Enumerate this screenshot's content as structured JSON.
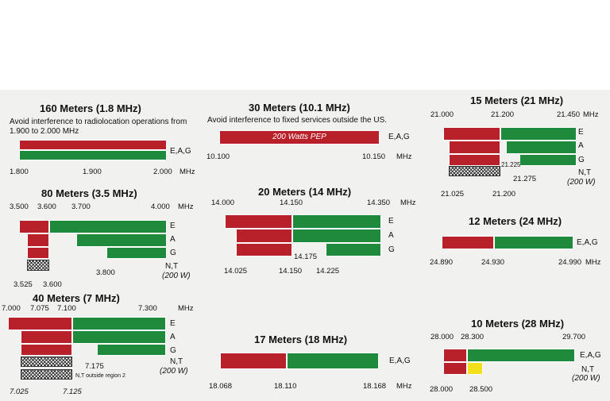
{
  "colors": {
    "red": "#b8202a",
    "green": "#1f8a3c",
    "yellow": "#f2e01a",
    "background": "#f1f1ef"
  },
  "bands": [
    {
      "id": "160m",
      "title": "160 Meters (1.8 MHz)",
      "note": "Avoid interference to radiolocation operations from 1.900 to 2.000 MHz",
      "ticks": [
        "1.800",
        "1.900",
        "2.000"
      ],
      "unit": "MHz",
      "class_label": "E,A,G"
    },
    {
      "id": "80m",
      "title": "80 Meters (3.5 MHz)",
      "ticks_top": [
        "3.500",
        "3.600",
        "3.700",
        "4.000"
      ],
      "unit": "MHz",
      "ticks_bottom": [
        "3.525",
        "3.600",
        "3.800"
      ],
      "class_labels": [
        "E",
        "A",
        "G",
        "N,T"
      ],
      "power": "(200 W)"
    },
    {
      "id": "40m",
      "title": "40 Meters (7 MHz)",
      "ticks_top": [
        "7.000",
        "7.075",
        "7.100",
        "7.300"
      ],
      "unit": "MHz",
      "ticks_bottom": [
        "7.025",
        "7.125",
        "7.175"
      ],
      "class_labels": [
        "E",
        "A",
        "G",
        "N,T"
      ],
      "region_note": "N,T outside region 2",
      "power": "(200 W)"
    },
    {
      "id": "30m",
      "title": "30 Meters (10.1 MHz)",
      "note": "Avoid interference to fixed services outside the US.",
      "bar_label": "200 Watts PEP",
      "ticks": [
        "10.100",
        "10.150"
      ],
      "unit": "MHz",
      "class_label": "E,A,G"
    },
    {
      "id": "20m",
      "title": "20 Meters (14 MHz)",
      "ticks_top": [
        "14.000",
        "14.150",
        "14.350"
      ],
      "unit": "MHz",
      "ticks_bottom": [
        "14.025",
        "14.150",
        "14.175",
        "14.225"
      ],
      "class_labels": [
        "E",
        "A",
        "G"
      ]
    },
    {
      "id": "17m",
      "title": "17 Meters (18 MHz)",
      "ticks": [
        "18.068",
        "18.110",
        "18.168"
      ],
      "unit": "MHz",
      "class_label": "E,A,G"
    },
    {
      "id": "15m",
      "title": "15 Meters (21 MHz)",
      "ticks_top": [
        "21.000",
        "21.200",
        "21.450"
      ],
      "unit": "MHz",
      "ticks_bottom": [
        "21.025",
        "21.200",
        "21.225",
        "21.275"
      ],
      "class_labels": [
        "E",
        "A",
        "G",
        "N,T"
      ],
      "power": "(200 W)"
    },
    {
      "id": "12m",
      "title": "12 Meters (24 MHz)",
      "ticks": [
        "24.890",
        "24.930",
        "24.990"
      ],
      "unit": "MHz",
      "class_label": "E,A,G"
    },
    {
      "id": "10m",
      "title": "10 Meters (28 MHz)",
      "ticks_top": [
        "28.000",
        "28.300",
        "29.700"
      ],
      "unit": "MHz",
      "ticks_bottom": [
        "28.000",
        "28.500"
      ],
      "class_labels": [
        "E,A,G",
        "N,T"
      ],
      "power": "(200 W)"
    }
  ]
}
